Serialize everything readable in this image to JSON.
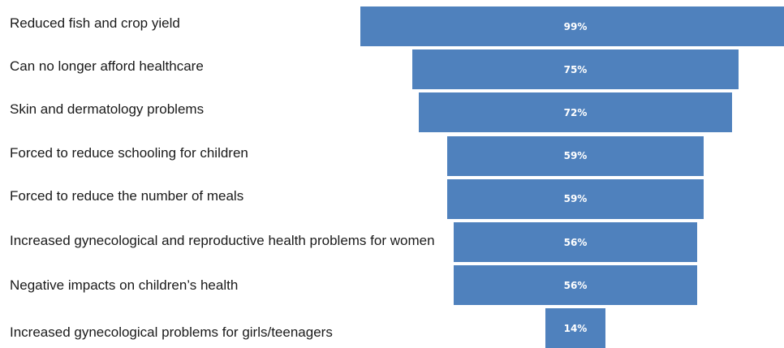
{
  "chart_data": {
    "type": "bar",
    "orientation": "horizontal",
    "style": "funnel",
    "categories": [
      "Reduced fish and crop yield",
      "Can no longer afford healthcare",
      "Skin and dermatology problems",
      "Forced to reduce schooling for children",
      "Forced to reduce the number of meals",
      "Increased gynecological and reproductive health problems for women",
      "Negative impacts on children’s health",
      "Increased gynecological problems for girls/teenagers"
    ],
    "values": [
      99,
      75,
      72,
      59,
      59,
      56,
      56,
      14
    ],
    "data_labels": [
      "99%",
      "75%",
      "72%",
      "59%",
      "59%",
      "56%",
      "56%",
      "14%"
    ],
    "unit": "%",
    "bar_color": "#4f81bd",
    "label_color": "#ffffff",
    "title": "",
    "xlabel": "",
    "ylabel": "",
    "xlim": [
      0,
      100
    ],
    "grid": false,
    "legend": "none"
  }
}
